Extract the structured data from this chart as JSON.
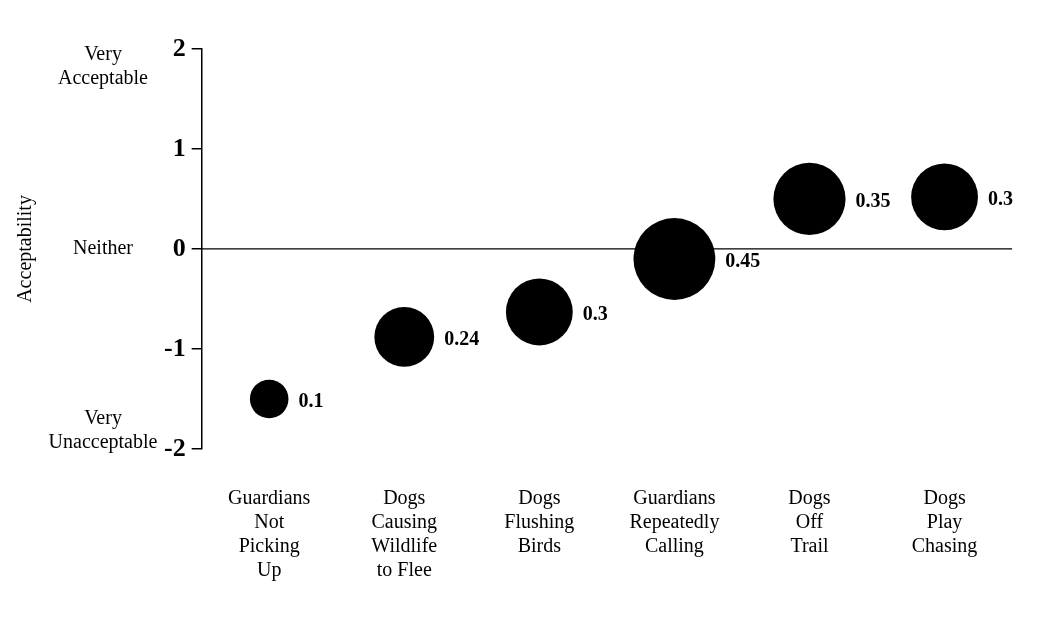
{
  "chart_data": {
    "type": "bubble",
    "categories": [
      "Guardians\nNot\nPicking\nUp",
      "Dogs\nCausing\nWildlife\nto Flee",
      "Dogs\nFlushing\nBirds",
      "Guardians\nRepeatedly\nCalling",
      "Dogs\nOff\nTrail",
      "Dogs\nPlay\nChasing"
    ],
    "values": [
      -1.5,
      -0.88,
      -0.63,
      -0.1,
      0.5,
      0.52
    ],
    "sizes": [
      0.1,
      0.24,
      0.3,
      0.45,
      0.35,
      0.3
    ],
    "value_labels": [
      "0.1",
      "0.24",
      "0.3",
      "0.45",
      "0.35",
      "0.3"
    ],
    "color": "#000000",
    "ylim": [
      -2,
      2
    ],
    "yticks": [
      -2,
      -1,
      0,
      1,
      2
    ],
    "annotations": [
      "Acceptability",
      "Very\nAcceptable",
      "Neither",
      "Very\nUnacceptable"
    ],
    "ref_lines": [
      {
        "axis": "y",
        "value": 0,
        "label": null,
        "color": "#000000"
      }
    ],
    "grid": false,
    "legend": false
  }
}
